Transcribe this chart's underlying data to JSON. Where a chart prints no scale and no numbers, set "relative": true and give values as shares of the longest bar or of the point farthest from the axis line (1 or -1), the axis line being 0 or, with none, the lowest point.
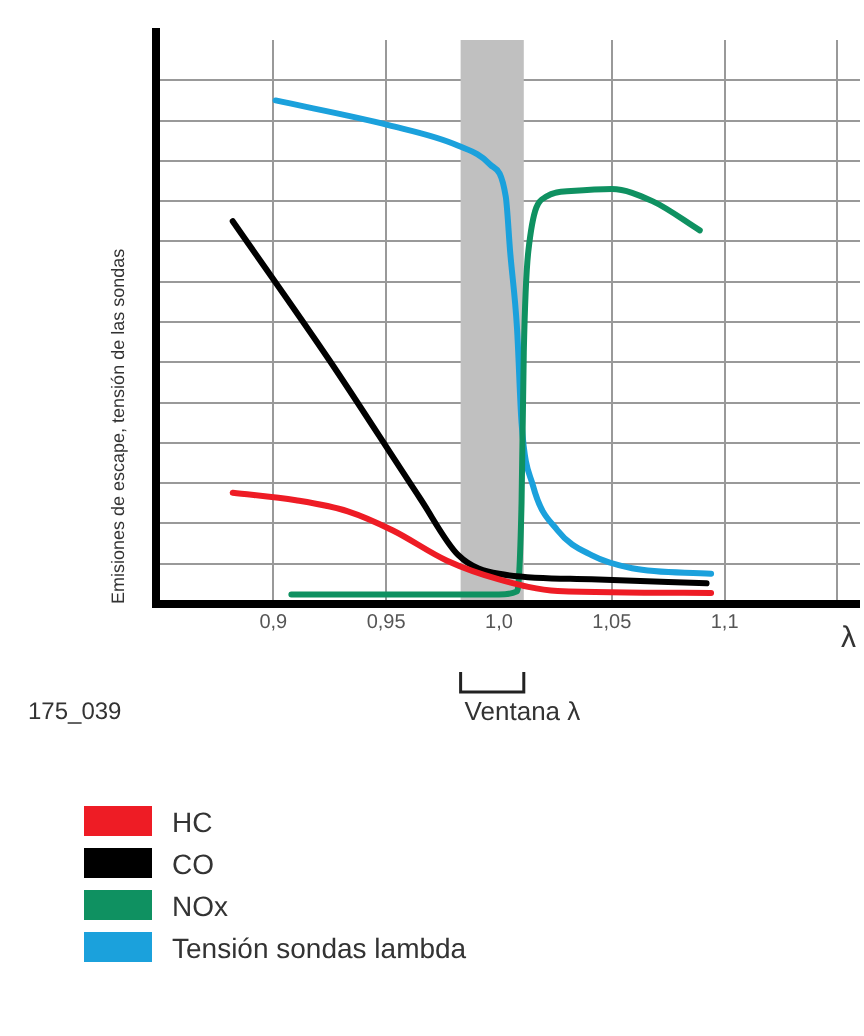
{
  "chart_data": {
    "type": "line",
    "relative": true,
    "xlabel": "λ",
    "ylabel": "Emisiones de escape, tensión de las sondas",
    "xlim": [
      0.848,
      1.16
    ],
    "xticks": [
      {
        "value": 0.9,
        "label": "0,9"
      },
      {
        "value": 0.95,
        "label": "0,95"
      },
      {
        "value": 1.0,
        "label": "1,0"
      },
      {
        "value": 1.05,
        "label": "1,05"
      },
      {
        "value": 1.1,
        "label": "1,1"
      },
      {
        "value": 1.15,
        "label": null
      }
    ],
    "grid": true,
    "legend": "bottom",
    "marker": "none",
    "line_style": "solid",
    "bands": [
      {
        "axis": "x",
        "from": 0.983,
        "to": 1.011,
        "color": "#c0c0c0"
      }
    ],
    "annotations": [
      "Ventana λ",
      "175_039"
    ],
    "series": [
      {
        "name": "HC",
        "color": "#ee1c25",
        "x": [
          0.882,
          0.91,
          0.933,
          0.953,
          0.977,
          1.0,
          1.026,
          1.094
        ],
        "values": [
          0.221,
          0.206,
          0.184,
          0.146,
          0.086,
          0.049,
          0.026,
          0.022
        ]
      },
      {
        "name": "CO",
        "color": "#000000",
        "x": [
          0.882,
          0.925,
          0.965,
          0.982,
          1.0,
          1.041,
          1.092
        ],
        "values": [
          0.76,
          0.483,
          0.21,
          0.097,
          0.06,
          0.049,
          0.041
        ]
      },
      {
        "name": "NOx",
        "color": "#0f9161",
        "x": [
          0.908,
          1.0,
          1.008,
          1.01,
          1.011,
          1.013,
          1.021,
          1.032,
          1.05,
          1.068,
          1.089
        ],
        "values": [
          0.019,
          0.019,
          0.025,
          0.2,
          0.5,
          0.7,
          0.809,
          0.82,
          0.824,
          0.8,
          0.742
        ]
      },
      {
        "name": "Tensión sondas lambda",
        "color": "#1ba1dc",
        "x": [
          0.901,
          0.951,
          0.982,
          0.996,
          1.003,
          1.005,
          1.008,
          1.01,
          1.015,
          1.026,
          1.041,
          1.059,
          1.094
        ],
        "values": [
          1.0,
          0.951,
          0.91,
          0.873,
          0.809,
          0.697,
          0.547,
          0.36,
          0.236,
          0.146,
          0.097,
          0.071,
          0.06
        ]
      }
    ]
  }
}
